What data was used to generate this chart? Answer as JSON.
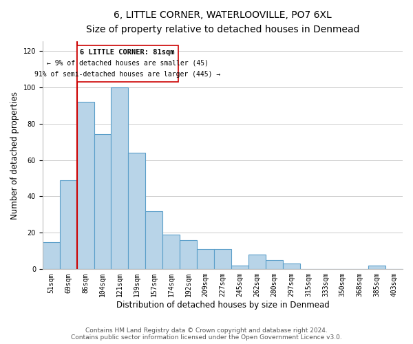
{
  "title": "6, LITTLE CORNER, WATERLOOVILLE, PO7 6XL",
  "subtitle": "Size of property relative to detached houses in Denmead",
  "xlabel": "Distribution of detached houses by size in Denmead",
  "ylabel": "Number of detached properties",
  "categories": [
    "51sqm",
    "69sqm",
    "86sqm",
    "104sqm",
    "121sqm",
    "139sqm",
    "157sqm",
    "174sqm",
    "192sqm",
    "209sqm",
    "227sqm",
    "245sqm",
    "262sqm",
    "280sqm",
    "297sqm",
    "315sqm",
    "333sqm",
    "350sqm",
    "368sqm",
    "385sqm",
    "403sqm"
  ],
  "values": [
    15,
    49,
    92,
    74,
    100,
    64,
    32,
    19,
    16,
    11,
    11,
    2,
    8,
    5,
    3,
    0,
    0,
    0,
    0,
    2,
    0
  ],
  "bar_color": "#b8d4e8",
  "bar_edge_color": "#5a9ec9",
  "marker_label": "6 LITTLE CORNER: 81sqm",
  "marker_line_color": "#cc0000",
  "annotation_line1": "← 9% of detached houses are smaller (45)",
  "annotation_line2": "91% of semi-detached houses are larger (445) →",
  "annotation_box_edge": "#cc0000",
  "ylim": [
    0,
    125
  ],
  "yticks": [
    0,
    20,
    40,
    60,
    80,
    100,
    120
  ],
  "footer_line1": "Contains HM Land Registry data © Crown copyright and database right 2024.",
  "footer_line2": "Contains public sector information licensed under the Open Government Licence v3.0.",
  "title_fontsize": 10,
  "subtitle_fontsize": 9,
  "axis_label_fontsize": 8.5,
  "tick_fontsize": 7,
  "annotation_fontsize": 7.5,
  "footer_fontsize": 6.5
}
